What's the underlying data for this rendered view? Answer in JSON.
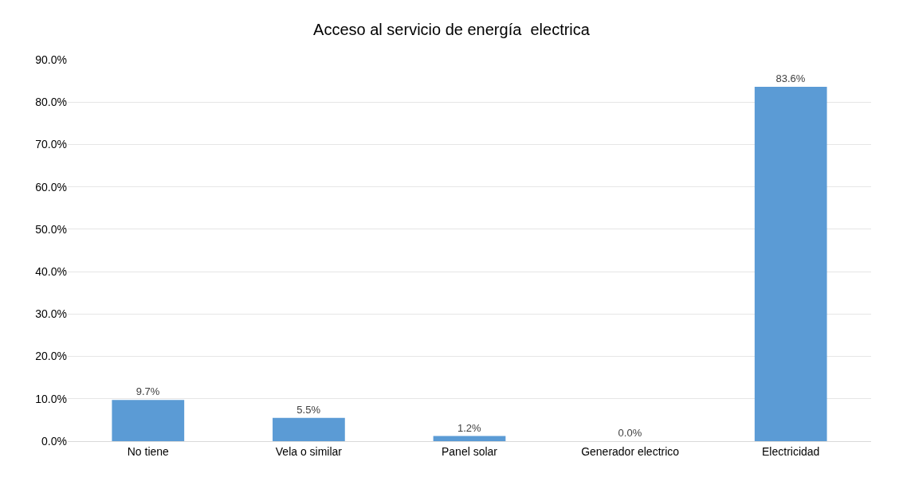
{
  "chart_data": {
    "type": "bar",
    "title": "Acceso al servicio de energía  electrica",
    "categories": [
      "No tiene",
      "Vela o similar",
      "Panel solar",
      "Generador electrico",
      "Electricidad"
    ],
    "values": [
      9.7,
      5.5,
      1.2,
      0.0,
      83.6
    ],
    "value_labels": [
      "9.7%",
      "5.5%",
      "1.2%",
      "0.0%",
      "83.6%"
    ],
    "color": "#5b9bd5",
    "ylim": [
      0,
      90
    ],
    "yticks": [
      {
        "value": 0,
        "label": "0.0%"
      },
      {
        "value": 10,
        "label": "10.0%"
      },
      {
        "value": 20,
        "label": "20.0%"
      },
      {
        "value": 30,
        "label": "30.0%"
      },
      {
        "value": 40,
        "label": "40.0%"
      },
      {
        "value": 50,
        "label": "50.0%"
      },
      {
        "value": 60,
        "label": "60.0%"
      },
      {
        "value": 70,
        "label": "70.0%"
      },
      {
        "value": 80,
        "label": "80.0%"
      },
      {
        "value": 90,
        "label": "90.0%"
      }
    ],
    "grid": "y"
  }
}
